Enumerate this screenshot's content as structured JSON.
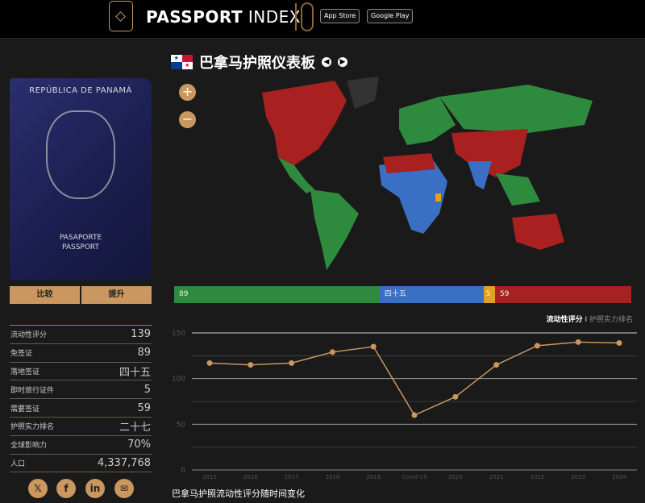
{
  "header": {
    "brand_bold": "PASSPORT",
    "brand_light": "INDEX",
    "ten": "10",
    "app_store": "App Store",
    "google_play": "Google Play"
  },
  "title": "巴拿马护照仪表板",
  "passport": {
    "country": "REPÚBLICA DE PANAMÁ",
    "label1": "PASAPORTE",
    "label2": "PASSPORT"
  },
  "buttons": {
    "compare": "比较",
    "upgrade": "提升"
  },
  "stats": [
    {
      "label": "流动性评分",
      "value": "139"
    },
    {
      "label": "免签证",
      "value": "89"
    },
    {
      "label": "落地签证",
      "value": "四十五"
    },
    {
      "label": "即时旅行证件",
      "value": "5"
    },
    {
      "label": "需要签证",
      "value": "59"
    },
    {
      "label": "护照实力排名",
      "value": "二十七"
    },
    {
      "label": "全球影响力",
      "value": "70%"
    },
    {
      "label": "人口",
      "value": "4,337,768"
    }
  ],
  "map": {
    "zoom_in": "+",
    "zoom_out": "−",
    "colors": {
      "visa_free": "#2e8b3e",
      "visa_on_arrival": "#3a6fc4",
      "eta": "#e0a020",
      "visa_required": "#a82020",
      "own": "#333333"
    }
  },
  "breakdown": [
    {
      "label": "89",
      "value": 89,
      "color": "#2e8b3e"
    },
    {
      "label": "四十五",
      "value": 45,
      "color": "#3a6fc4"
    },
    {
      "label": "5",
      "value": 5,
      "color": "#e0a020"
    },
    {
      "label": "59",
      "value": 59,
      "color": "#a82020"
    }
  ],
  "toggle": {
    "active": "流动性评分",
    "sep": "I",
    "inactive": "护照实力排名"
  },
  "chart_data": {
    "type": "line",
    "title": "巴拿马护照流动性评分随时间变化",
    "categories": [
      "2015",
      "2016",
      "2017",
      "2018",
      "2019",
      "Covid-19",
      "2020",
      "2021",
      "2022",
      "2023",
      "2024"
    ],
    "values": [
      117,
      115,
      117,
      129,
      135,
      60,
      80,
      115,
      136,
      140,
      139
    ],
    "ylim": [
      0,
      150
    ],
    "yticks": [
      "0",
      "50",
      "100",
      "150"
    ],
    "grid": true,
    "color": "#c9975f"
  }
}
